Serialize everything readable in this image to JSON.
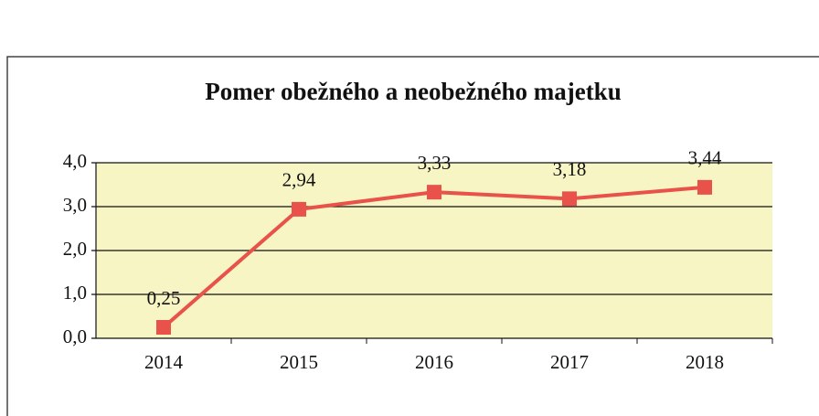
{
  "chart_data": {
    "type": "line",
    "title": "Pomer obežného a neobežného majetku",
    "categories": [
      "2014",
      "2015",
      "2016",
      "2017",
      "2018"
    ],
    "series": [
      {
        "name": "Pomer",
        "color": "#e8524a",
        "values": [
          0.25,
          2.94,
          3.33,
          3.18,
          3.44
        ],
        "value_labels": [
          "0,25",
          "2,94",
          "3,33",
          "3,18",
          "3,44"
        ]
      }
    ],
    "ylim": [
      0,
      4
    ],
    "yticks": [
      {
        "value": 0,
        "label": "0,0"
      },
      {
        "value": 1,
        "label": "1,0"
      },
      {
        "value": 2,
        "label": "2,0"
      },
      {
        "value": 3,
        "label": "3,0"
      },
      {
        "value": 4,
        "label": "4,0"
      }
    ],
    "grid": true,
    "plot_background": "#f7f5c4"
  }
}
